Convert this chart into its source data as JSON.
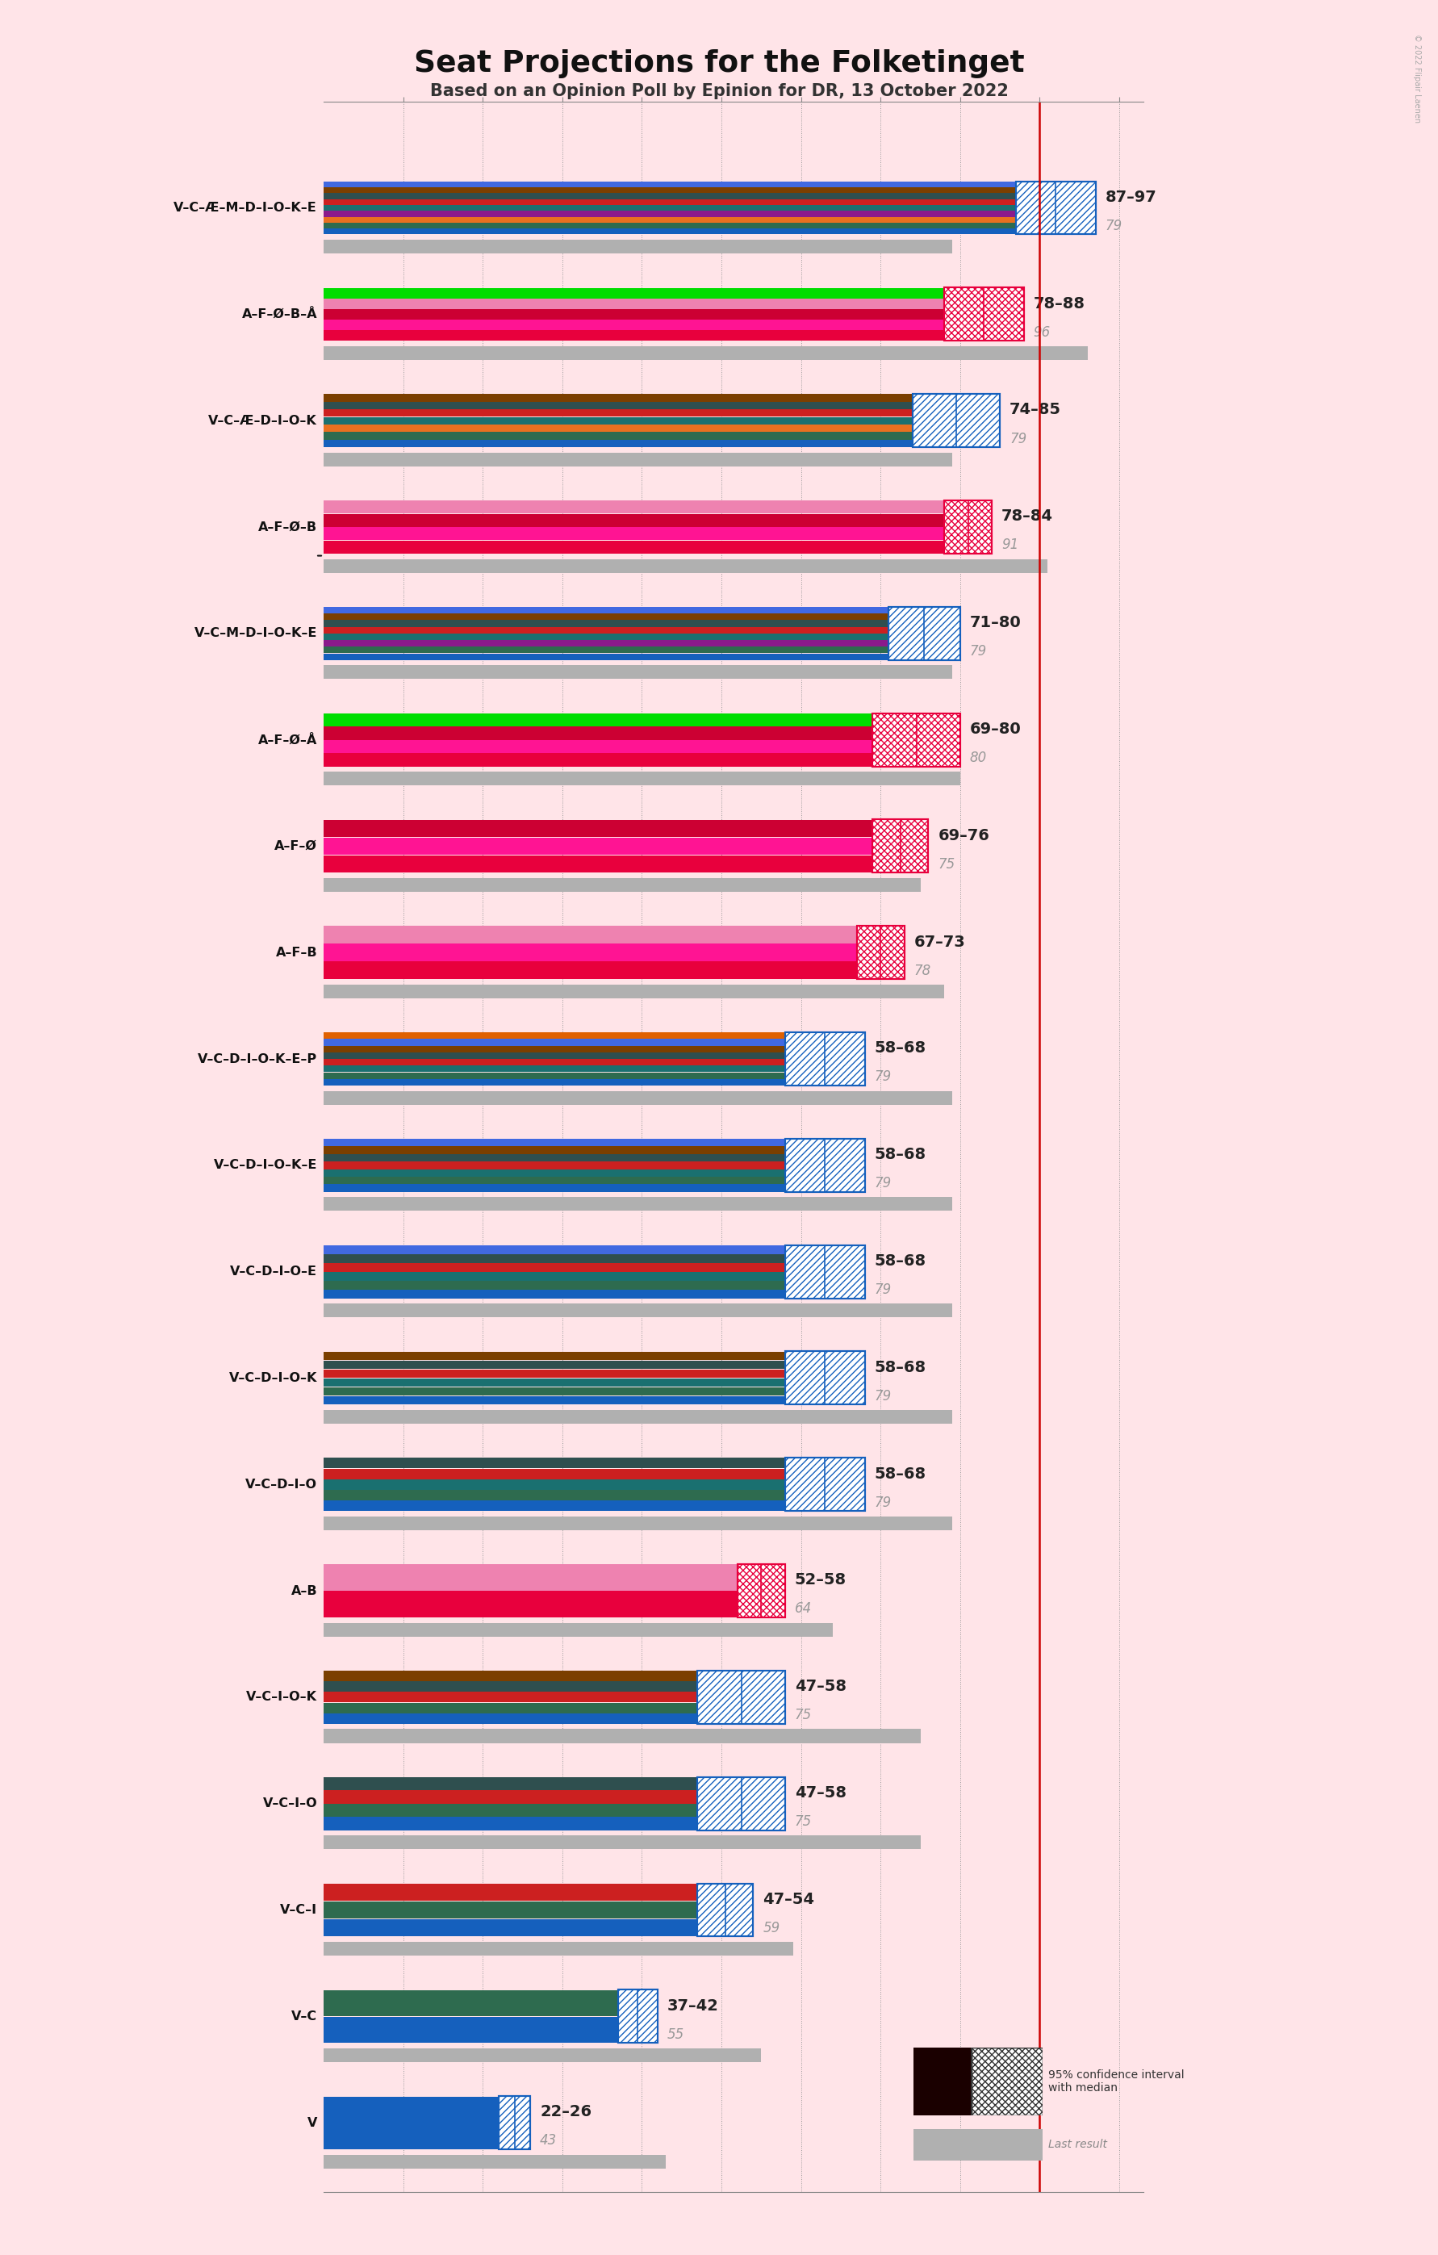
{
  "title": "Seat Projections for the Folketinget",
  "subtitle": "Based on an Opinion Poll by Epinion for DR, 13 October 2022",
  "copyright": "© 2022 Flipair Laenen",
  "background_color": "#FFE4E8",
  "coalitions": [
    {
      "label": "V–C–Æ–M–D–I–O–K–E",
      "low": 87,
      "high": 97,
      "last": 79,
      "type": "blue",
      "underline": false
    },
    {
      "label": "A–F–Ø–B–Å",
      "low": 78,
      "high": 88,
      "last": 96,
      "type": "red",
      "underline": false
    },
    {
      "label": "V–C–Æ–D–I–O–K",
      "low": 74,
      "high": 85,
      "last": 79,
      "type": "blue",
      "underline": false
    },
    {
      "label": "A–F–Ø–B",
      "low": 78,
      "high": 84,
      "last": 91,
      "type": "red",
      "underline": true
    },
    {
      "label": "V–C–M–D–I–O–K–E",
      "low": 71,
      "high": 80,
      "last": 79,
      "type": "blue",
      "underline": false
    },
    {
      "label": "A–F–Ø–Å",
      "low": 69,
      "high": 80,
      "last": 80,
      "type": "red",
      "underline": false
    },
    {
      "label": "A–F–Ø",
      "low": 69,
      "high": 76,
      "last": 75,
      "type": "red",
      "underline": false
    },
    {
      "label": "A–F–B",
      "low": 67,
      "high": 73,
      "last": 78,
      "type": "red",
      "underline": false
    },
    {
      "label": "V–C–D–I–O–K–E–P",
      "low": 58,
      "high": 68,
      "last": 79,
      "type": "blue",
      "underline": false
    },
    {
      "label": "V–C–D–I–O–K–E",
      "low": 58,
      "high": 68,
      "last": 79,
      "type": "blue",
      "underline": false
    },
    {
      "label": "V–C–D–I–O–E",
      "low": 58,
      "high": 68,
      "last": 79,
      "type": "blue",
      "underline": false
    },
    {
      "label": "V–C–D–I–O–K",
      "low": 58,
      "high": 68,
      "last": 79,
      "type": "blue",
      "underline": false
    },
    {
      "label": "V–C–D–I–O",
      "low": 58,
      "high": 68,
      "last": 79,
      "type": "blue",
      "underline": false
    },
    {
      "label": "A–B",
      "low": 52,
      "high": 58,
      "last": 64,
      "type": "red",
      "underline": false
    },
    {
      "label": "V–C–I–O–K",
      "low": 47,
      "high": 58,
      "last": 75,
      "type": "blue",
      "underline": false
    },
    {
      "label": "V–C–I–O",
      "low": 47,
      "high": 58,
      "last": 75,
      "type": "blue",
      "underline": false
    },
    {
      "label": "V–C–I",
      "low": 47,
      "high": 54,
      "last": 59,
      "type": "blue",
      "underline": false
    },
    {
      "label": "V–C",
      "low": 37,
      "high": 42,
      "last": 55,
      "type": "blue",
      "underline": false
    },
    {
      "label": "V",
      "low": 22,
      "high": 26,
      "last": 43,
      "type": "blue",
      "underline": false
    }
  ],
  "blue_party_colors": {
    "V": "#1560BD",
    "C": "#2E6B4F",
    "Æ": "#E87020",
    "M": "#8B1A8B",
    "D": "#1A7070",
    "I": "#CC2020",
    "O": "#2F4F4F",
    "K": "#7B3F00",
    "E": "#4169E1",
    "P": "#E06000"
  },
  "red_party_colors": {
    "A": "#E8003D",
    "F": "#FF1493",
    "Ø": "#CC0033",
    "B": "#EE82B0",
    "Å": "#00DD00"
  },
  "grid_values": [
    10,
    20,
    30,
    40,
    50,
    60,
    70,
    80,
    90,
    100
  ],
  "majority_line": 90,
  "xlim_max": 103
}
